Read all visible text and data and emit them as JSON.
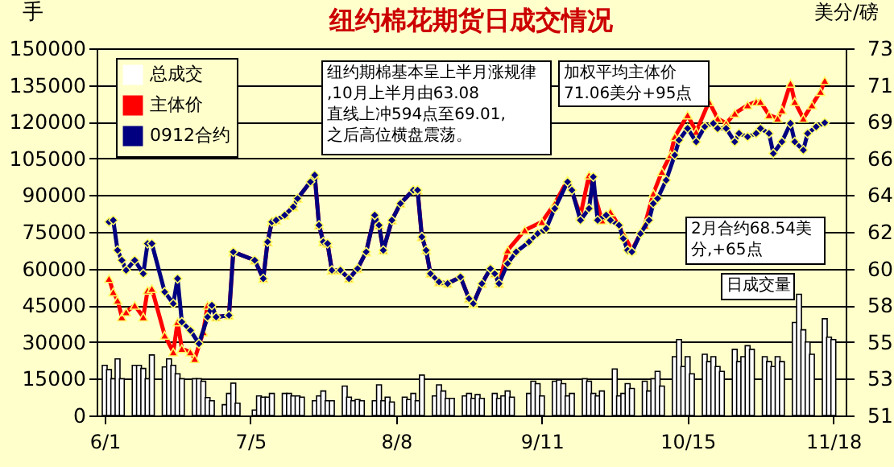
{
  "chart_data": {
    "type": "bar",
    "title": "纽约棉花期货日成交情况",
    "ylabel": "手",
    "y2label": "美分/磅",
    "xlim": [
      "--06-01",
      "--11-19"
    ],
    "xticks": [
      {
        "value": "--06-01",
        "label": "6/1"
      },
      {
        "value": "--07-05",
        "label": "7/5"
      },
      {
        "value": "--08-08",
        "label": "8/8"
      },
      {
        "value": "--09-11",
        "label": "9/11"
      },
      {
        "value": "--10-15",
        "label": "10/15"
      },
      {
        "value": "--11-18",
        "label": "11/18"
      }
    ],
    "ylim": [
      0,
      150000
    ],
    "yticks": [
      0,
      15000,
      30000,
      45000,
      60000,
      75000,
      90000,
      105000,
      120000,
      135000,
      150000
    ],
    "y2lim": [
      51,
      73
    ],
    "y2ticks": [
      51,
      {
        "value": 53.2,
        "label": "53"
      },
      {
        "value": 55.4,
        "label": "55"
      },
      {
        "value": 57.6,
        "label": "58"
      },
      {
        "value": 59.8,
        "label": "60"
      },
      62,
      {
        "value": 64.2,
        "label": "64"
      },
      {
        "value": 66.4,
        "label": "66"
      },
      {
        "value": 68.6,
        "label": "69"
      },
      {
        "value": 70.8,
        "label": "71"
      },
      73
    ],
    "grid": "y",
    "legend": "top left",
    "annotations": [
      "加权平均主体价71.06美分+95点",
      "2月合约68.54美分,+65点",
      "纽约期棉基本呈上半月涨规律,10月上半月由63.08直线上冲594点至69.01,之后高位横盘震荡。",
      "日成交量"
    ],
    "series": [
      {
        "name": "总成交",
        "color": "#ffffff",
        "x": [
          "--06-01",
          "--06-02",
          "--06-03",
          "--06-04",
          "--06-05",
          "--06-08",
          "--06-09",
          "--06-10",
          "--06-11",
          "--06-12",
          "--06-15",
          "--06-16",
          "--06-17",
          "--06-18",
          "--06-19",
          "--06-22",
          "--06-23",
          "--06-24",
          "--06-25",
          "--06-26",
          "--06-29",
          "--06-30",
          "--07-01",
          "--07-02",
          "--07-06",
          "--07-07",
          "--07-08",
          "--07-09",
          "--07-10",
          "--07-13",
          "--07-14",
          "--07-15",
          "--07-16",
          "--07-17",
          "--07-20",
          "--07-21",
          "--07-22",
          "--07-23",
          "--07-24",
          "--07-27",
          "--07-28",
          "--07-29",
          "--07-30",
          "--07-31",
          "--08-03",
          "--08-04",
          "--08-05",
          "--08-06",
          "--08-07",
          "--08-10",
          "--08-11",
          "--08-12",
          "--08-13",
          "--08-14",
          "--08-17",
          "--08-18",
          "--08-19",
          "--08-20",
          "--08-21",
          "--08-24",
          "--08-25",
          "--08-26",
          "--08-27",
          "--08-28",
          "--08-31",
          "--09-01",
          "--09-02",
          "--09-03",
          "--09-04",
          "--09-08",
          "--09-09",
          "--09-10",
          "--09-11",
          "--09-14",
          "--09-15",
          "--09-16",
          "--09-17",
          "--09-18",
          "--09-21",
          "--09-22",
          "--09-23",
          "--09-24",
          "--09-25",
          "--09-28",
          "--09-29",
          "--09-30",
          "--10-01",
          "--10-02",
          "--10-05",
          "--10-06",
          "--10-07",
          "--10-08",
          "--10-09",
          "--10-12",
          "--10-13",
          "--10-14",
          "--10-15",
          "--10-16",
          "--10-19",
          "--10-20",
          "--10-21",
          "--10-22",
          "--10-23",
          "--10-26",
          "--10-27",
          "--10-28",
          "--10-29",
          "--10-30",
          "--11-02",
          "--11-03",
          "--11-04",
          "--11-05",
          "--11-06",
          "--11-09",
          "--11-10",
          "--11-11",
          "--11-12",
          "--11-13",
          "--11-16",
          "--11-17",
          "--11-18"
        ],
        "values": [
          20500,
          18700,
          15000,
          23100,
          15000,
          20500,
          20500,
          19200,
          15000,
          24700,
          19800,
          23100,
          20500,
          17000,
          15000,
          15000,
          15000,
          14000,
          7300,
          6000,
          4400,
          9000,
          13200,
          5000,
          2200,
          8000,
          7500,
          7500,
          9000,
          9000,
          9000,
          8000,
          8000,
          7500,
          6000,
          8000,
          10000,
          6000,
          6000,
          12000,
          7500,
          6000,
          6500,
          6000,
          6000,
          12500,
          6000,
          7500,
          5500,
          7500,
          6500,
          9000,
          6000,
          16500,
          8000,
          12500,
          10000,
          7000,
          7000,
          8000,
          9000,
          7000,
          8500,
          7000,
          9000,
          7000,
          8000,
          10000,
          7500,
          9000,
          14000,
          13000,
          8000,
          14000,
          14500,
          13000,
          8000,
          9000,
          15000,
          14000,
          9000,
          8000,
          10000,
          19000,
          8000,
          9000,
          13000,
          11000,
          14000,
          10000,
          15000,
          18000,
          12000,
          24000,
          31000,
          20000,
          24000,
          17000,
          25000,
          22000,
          24000,
          20000,
          18000,
          27000,
          22000,
          24000,
          28500,
          27000,
          24000,
          22000,
          20000,
          24000,
          22000,
          38000,
          49500,
          35000,
          30000,
          25000,
          39500,
          32000,
          31000
        ]
      },
      {
        "name": "主体价",
        "type": "line",
        "axis": "y2",
        "color": "#ff0000",
        "marker": "triangle",
        "x": [
          "--06-02",
          "--06-03",
          "--06-04",
          "--06-05",
          "--06-06",
          "--06-08",
          "--06-10",
          "--06-11",
          "--06-12",
          "--06-15",
          "--06-17",
          "--06-18",
          "--06-19",
          "--06-21",
          "--06-22",
          "--06-24",
          "--06-25",
          "--06-26",
          "--06-27",
          "--06-30",
          "--07-01",
          "--07-06",
          "--07-08",
          "--07-09",
          "--07-10",
          "--07-11",
          "--07-13",
          "--07-15",
          "--07-16",
          "--07-19",
          "--07-20",
          "--07-21",
          "--07-22",
          "--07-23",
          "--07-24",
          "--07-26",
          "--07-28",
          "--07-30",
          "--08-01",
          "--08-03",
          "--08-04",
          "--08-05",
          "--08-07",
          "--08-09",
          "--08-12",
          "--08-13",
          "--08-14",
          "--08-15",
          "--08-16",
          "--08-18",
          "--08-20",
          "--08-23",
          "--08-25",
          "--08-26",
          "--08-28",
          "--08-30",
          "--08-31",
          "--09-01",
          "--09-03",
          "--09-07",
          "--09-11",
          "--09-14",
          "--09-17",
          "--09-20",
          "--09-22",
          "--09-25",
          "--09-27",
          "--09-30",
          "--10-02",
          "--10-05",
          "--10-07",
          "--10-09",
          "--10-11",
          "--10-12",
          "--10-15",
          "--10-17",
          "--10-20",
          "--10-22",
          "--10-24",
          "--10-26",
          "--10-29",
          "--10-31",
          "--11-01",
          "--11-03",
          "--11-05",
          "--11-06",
          "--11-08",
          "--11-09",
          "--11-11",
          "--11-13",
          "--11-15",
          "--11-16"
        ],
        "values": [
          59.2,
          58.4,
          57.9,
          56.9,
          57.2,
          57.6,
          56.9,
          58.5,
          58.6,
          55.8,
          54.8,
          56.6,
          55.0,
          54.8,
          54.4,
          56.0,
          57.6,
          57.6,
          56.9,
          57.0,
          60.8,
          60.3,
          59.2,
          61.4,
          62.6,
          62.7,
          63.0,
          63.5,
          64.0,
          65.0,
          65.4,
          62.4,
          61.4,
          61.3,
          59.7,
          59.7,
          59.2,
          59.8,
          60.8,
          63.0,
          62.4,
          60.9,
          62.7,
          63.7,
          64.5,
          64.5,
          61.7,
          60.9,
          59.5,
          59.0,
          58.9,
          59.3,
          58.0,
          57.7,
          58.9,
          59.8,
          59.5,
          58.9,
          60.9,
          62.1,
          62.6,
          63.7,
          65.1,
          63.0,
          65.4,
          62.7,
          63.2,
          61.9,
          60.9,
          62.4,
          64.3,
          65.6,
          66.6,
          67.7,
          69.0,
          68.0,
          69.8,
          68.8,
          68.5,
          69.1,
          69.6,
          69.8,
          69.8,
          69.0,
          68.8,
          69.3,
          70.9,
          69.8,
          68.8,
          69.6,
          70.4,
          71.06
        ]
      },
      {
        "name": "0912合约",
        "type": "line",
        "axis": "y2",
        "color": "#000080",
        "marker": "diamond",
        "x": [
          "--06-02",
          "--06-03",
          "--06-04",
          "--06-05",
          "--06-06",
          "--06-08",
          "--06-10",
          "--06-11",
          "--06-12",
          "--06-15",
          "--06-17",
          "--06-18",
          "--06-19",
          "--06-21",
          "--06-23",
          "--06-25",
          "--06-26",
          "--06-27",
          "--06-30",
          "--07-01",
          "--07-06",
          "--07-08",
          "--07-09",
          "--07-10",
          "--07-11",
          "--07-13",
          "--07-15",
          "--07-16",
          "--07-19",
          "--07-20",
          "--07-21",
          "--07-22",
          "--07-23",
          "--07-24",
          "--07-26",
          "--07-28",
          "--07-30",
          "--08-01",
          "--08-03",
          "--08-04",
          "--08-05",
          "--08-07",
          "--08-09",
          "--08-12",
          "--08-13",
          "--08-14",
          "--08-15",
          "--08-16",
          "--08-18",
          "--08-20",
          "--08-23",
          "--08-25",
          "--08-26",
          "--08-28",
          "--08-30",
          "--08-31",
          "--09-01",
          "--09-03",
          "--09-05",
          "--09-08",
          "--09-10",
          "--09-12",
          "--09-14",
          "--09-17",
          "--09-18",
          "--09-20",
          "--09-22",
          "--09-23",
          "--09-24",
          "--09-26",
          "--09-27",
          "--09-29",
          "--09-30",
          "--10-01",
          "--10-02",
          "--10-04",
          "--10-06",
          "--10-07",
          "--10-08",
          "--10-10",
          "--10-12",
          "--10-13",
          "--10-15",
          "--10-17",
          "--10-19",
          "--10-21",
          "--10-22",
          "--10-24",
          "--10-26",
          "--10-27",
          "--10-29",
          "--10-31",
          "--11-01",
          "--11-03",
          "--11-04",
          "--11-06",
          "--11-08",
          "--11-09",
          "--11-11",
          "--11-12",
          "--11-14",
          "--11-16"
        ],
        "values": [
          62.6,
          62.7,
          60.9,
          60.3,
          59.7,
          60.3,
          59.5,
          61.3,
          61.3,
          58.4,
          57.7,
          59.2,
          56.6,
          56.1,
          55.3,
          56.9,
          57.6,
          56.9,
          57.0,
          60.8,
          60.3,
          59.2,
          61.4,
          62.6,
          62.7,
          63.0,
          63.5,
          64.0,
          65.0,
          65.4,
          62.4,
          61.4,
          61.3,
          59.7,
          59.7,
          59.2,
          59.8,
          60.8,
          63.0,
          62.4,
          60.9,
          62.7,
          63.7,
          64.5,
          64.5,
          61.7,
          60.9,
          59.5,
          59.0,
          58.9,
          59.3,
          58.0,
          57.7,
          58.9,
          59.8,
          59.5,
          58.9,
          60.1,
          60.8,
          61.4,
          61.9,
          62.2,
          63.4,
          65.0,
          64.5,
          62.7,
          63.4,
          65.3,
          62.7,
          63.0,
          62.7,
          62.4,
          61.6,
          60.9,
          60.8,
          61.9,
          62.7,
          63.7,
          64.0,
          65.1,
          66.6,
          67.5,
          68.2,
          67.4,
          68.3,
          68.5,
          68.2,
          68.2,
          67.4,
          67.9,
          67.7,
          67.9,
          68.2,
          67.9,
          66.7,
          67.4,
          68.5,
          67.4,
          66.9,
          67.9,
          68.3,
          68.54
        ]
      }
    ]
  }
}
